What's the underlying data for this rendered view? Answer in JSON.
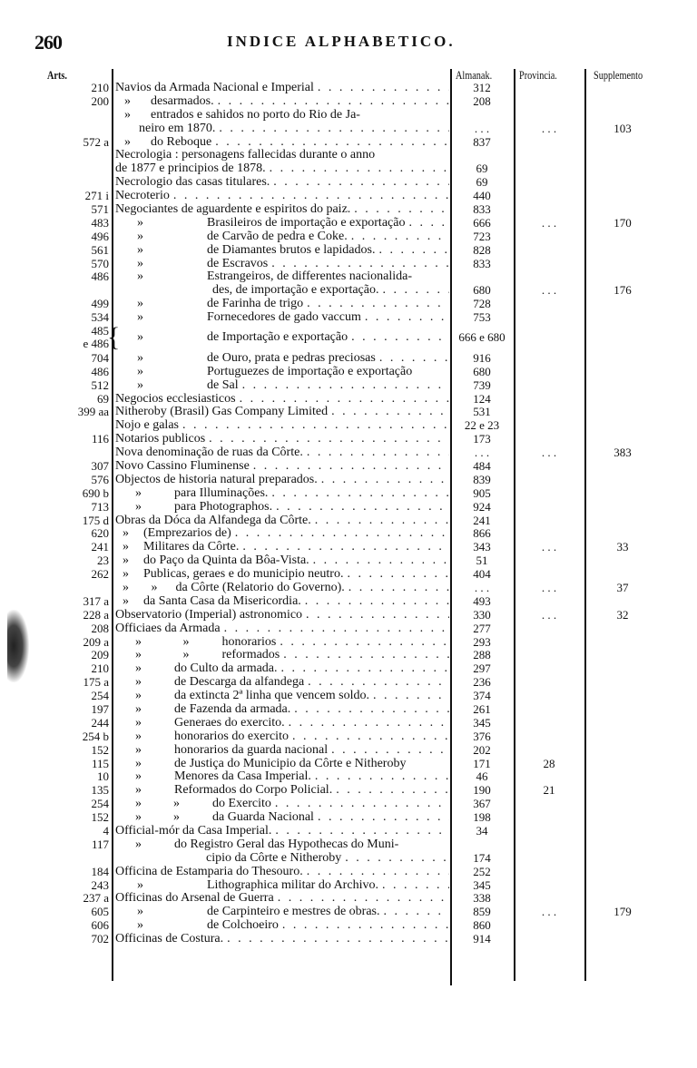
{
  "page_number": "260",
  "title": "INDICE ALPHABETICO.",
  "columns": {
    "arts": "Arts.",
    "almanak": "Almanak.",
    "provincia": "Provincia.",
    "supplemento": "Supplemento"
  },
  "rows": [
    {
      "art": "210",
      "level": 0,
      "text": "Navios da Armada Nacional e Imperial",
      "almanak": "312"
    },
    {
      "art": "200",
      "level": 1,
      "ditto": "»",
      "text": "desarmados.",
      "almanak": "208"
    },
    {
      "art": "",
      "level": 1,
      "ditto": "»",
      "text": "entrados e sahidos no porto do Rio de Ja-",
      "noleader": true
    },
    {
      "art": "",
      "level": 3,
      "text": "neiro em 1870.",
      "almanak": ". . .",
      "provincia": ". . .",
      "supplemento": "103"
    },
    {
      "art": "572 a",
      "level": 1,
      "ditto": "»",
      "text": "do Reboque",
      "almanak": "837"
    },
    {
      "art": "",
      "level": 0,
      "text": "Necrologia : personagens fallecidas durante o anno",
      "noleader": true
    },
    {
      "art": "",
      "level": 4,
      "text": "de 1877 e principios de 1878.",
      "almanak": "69"
    },
    {
      "art": "",
      "level": 0,
      "text": "Necrologio das casas titulares.",
      "almanak": "69"
    },
    {
      "art": "271 i",
      "level": 0,
      "text": "Necroterio",
      "almanak": "440"
    },
    {
      "art": "571",
      "level": 0,
      "text": "Negociantes de aguardente e espiritos do paiz.",
      "almanak": "833"
    },
    {
      "art": "483",
      "level": 2,
      "ditto": "»",
      "text": "Brasileiros de importação e exportação",
      "almanak": "666",
      "provincia": ". . .",
      "supplemento": "170"
    },
    {
      "art": "496",
      "level": 2,
      "ditto": "»",
      "text": "de Carvão de pedra e Coke.",
      "almanak": "723"
    },
    {
      "art": "561",
      "level": 2,
      "ditto": "»",
      "text": "de Diamantes brutos e lapidados.",
      "almanak": "828"
    },
    {
      "art": "570",
      "level": 2,
      "ditto": "»",
      "text": "de Escravos",
      "almanak": "833"
    },
    {
      "art": "486",
      "level": 2,
      "ditto": "»",
      "text": "Estrangeiros, de differentes nacionalida-",
      "noleader": true
    },
    {
      "art": "",
      "level": 5,
      "text": "des, de importação e exportação.",
      "almanak": "680",
      "provincia": ". . .",
      "supplemento": "176"
    },
    {
      "art": "499",
      "level": 2,
      "ditto": "»",
      "text": "de Farinha de trigo",
      "almanak": "728"
    },
    {
      "art": "534",
      "level": 2,
      "ditto": "»",
      "text": "Fornecedores de gado vaccum",
      "almanak": "753"
    },
    {
      "art": "485\ne 486",
      "level": 2,
      "ditto": "»",
      "text": "de Importação e exportação",
      "almanak": "666 e 680",
      "brace": "{"
    },
    {
      "art": "704",
      "level": 2,
      "ditto": "»",
      "text": "de Ouro, prata e pedras preciosas",
      "almanak": "916"
    },
    {
      "art": "486",
      "level": 2,
      "ditto": "»",
      "text": "Portuguezes de importação e exportação",
      "almanak": "680",
      "noleader": true
    },
    {
      "art": "512",
      "level": 2,
      "ditto": "»",
      "text": "de Sal",
      "almanak": "739"
    },
    {
      "art": "69",
      "level": 0,
      "text": "Negocios ecclesiasticos",
      "almanak": "124"
    },
    {
      "art": "399 aa",
      "level": 0,
      "text": "Nitheroby (Brasil) Gas Company Limited",
      "almanak": "531"
    },
    {
      "art": "",
      "level": 0,
      "text": "Nojo e galas",
      "almanak": "22 e 23"
    },
    {
      "art": "116",
      "level": 0,
      "text": "Notarios publicos",
      "almanak": "173"
    },
    {
      "art": "",
      "level": 0,
      "text": "Nova denominação de ruas da Côrte.",
      "almanak": ". . .",
      "provincia": ". . .",
      "supplemento": "383"
    },
    {
      "art": "307",
      "level": 0,
      "text": "Novo Cassino Fluminense",
      "almanak": "484"
    },
    {
      "art": "576",
      "level": 0,
      "text": "Objectos de historia natural preparados.",
      "almanak": "839"
    },
    {
      "art": "690 b",
      "level": 6,
      "ditto": "»",
      "text": "para Illuminações.",
      "almanak": "905"
    },
    {
      "art": "713",
      "level": 6,
      "ditto": "»",
      "text": "para Photographos.",
      "almanak": "924"
    },
    {
      "art": "175 d",
      "level": 0,
      "text": "Obras da Dóca da Alfandega da Côrte.",
      "almanak": "241"
    },
    {
      "art": "620",
      "level": 7,
      "ditto": "»",
      "text": "(Emprezarios de)",
      "almanak": "866"
    },
    {
      "art": "241",
      "level": 7,
      "ditto": "»",
      "text": "Militares da Côrte.",
      "almanak": "343",
      "provincia": ". . .",
      "supplemento": "33"
    },
    {
      "art": "23",
      "level": 7,
      "ditto": "»",
      "text": "do Paço da Quinta da Bôa-Vista.",
      "almanak": "51"
    },
    {
      "art": "262",
      "level": 7,
      "ditto": "»",
      "text": "Publicas, geraes e do municipio neutro.",
      "almanak": "404"
    },
    {
      "art": "",
      "level": 8,
      "ditto": "»       »",
      "text": "da Côrte (Relatorio do Governo).",
      "almanak": ". . .",
      "provincia": ". . .",
      "supplemento": "37"
    },
    {
      "art": "317 a",
      "level": 7,
      "ditto": "»",
      "text": "da Santa Casa da Misericordia.",
      "almanak": "493"
    },
    {
      "art": "228 a",
      "level": 0,
      "text": "Observatorio (Imperial) astronomico",
      "almanak": "330",
      "provincia": ". . .",
      "supplemento": "32"
    },
    {
      "art": "208",
      "level": 0,
      "text": "Officiaes da Armada",
      "almanak": "277"
    },
    {
      "art": "209 a",
      "level": 9,
      "ditto": "»             »",
      "text": "honorarios",
      "almanak": "293"
    },
    {
      "art": "209",
      "level": 9,
      "ditto": "»             »",
      "text": "reformados",
      "almanak": "288"
    },
    {
      "art": "210",
      "level": 6,
      "ditto": "»",
      "text": "do Culto da armada.",
      "almanak": "297"
    },
    {
      "art": "175 a",
      "level": 6,
      "ditto": "»",
      "text": "de Descarga da alfandega",
      "almanak": "236"
    },
    {
      "art": "254",
      "level": 6,
      "ditto": "»",
      "text": "da extincta 2ª linha que vencem soldo.",
      "almanak": "374"
    },
    {
      "art": "197",
      "level": 6,
      "ditto": "»",
      "text": "de Fazenda da armada.",
      "almanak": "261"
    },
    {
      "art": "244",
      "level": 6,
      "ditto": "»",
      "text": "Generaes do exercito.",
      "almanak": "345"
    },
    {
      "art": "254 b",
      "level": 6,
      "ditto": "»",
      "text": "honorarios do exercito",
      "almanak": "376"
    },
    {
      "art": "152",
      "level": 6,
      "ditto": "»",
      "text": "honorarios da guarda nacional",
      "almanak": "202"
    },
    {
      "art": "115",
      "level": 6,
      "ditto": "»",
      "text": "de Justiça do Municipio da Côrte e Nitheroby",
      "almanak": "171",
      "provincia": "28",
      "noleader": true
    },
    {
      "art": "10",
      "level": 6,
      "ditto": "»",
      "text": "Menores da Casa Imperial.",
      "almanak": "46"
    },
    {
      "art": "135",
      "level": 6,
      "ditto": "»",
      "text": "Reformados do Corpo Policial.",
      "almanak": "190",
      "provincia": "21"
    },
    {
      "art": "254",
      "level": 10,
      "ditto": "»          »",
      "text": "do Exercito",
      "almanak": "367"
    },
    {
      "art": "152",
      "level": 10,
      "ditto": "»          »",
      "text": "da Guarda Nacional",
      "almanak": "198"
    },
    {
      "art": "4",
      "level": 0,
      "text": "Official-mór da Casa Imperial.",
      "almanak": "34"
    },
    {
      "art": "117",
      "level": 6,
      "ditto": "»",
      "text": "do Registro Geral das Hypothecas do Muni-",
      "noleader": true
    },
    {
      "art": "",
      "level": 11,
      "text": "cipio da Côrte e Nitheroby",
      "almanak": "174"
    },
    {
      "art": "184",
      "level": 0,
      "text": "Officina de Estamparia do Thesouro.",
      "almanak": "252"
    },
    {
      "art": "243",
      "level": 2,
      "ditto": "»",
      "text": "Lithographica militar do Archivo.",
      "almanak": "345"
    },
    {
      "art": "237 a",
      "level": 0,
      "text": "Officinas do Arsenal de Guerra",
      "almanak": "338"
    },
    {
      "art": "605",
      "level": 2,
      "ditto": "»",
      "text": "de Carpinteiro e mestres de obras.",
      "almanak": "859",
      "provincia": ". . .",
      "supplemento": "179"
    },
    {
      "art": "606",
      "level": 2,
      "ditto": "»",
      "text": "de Colchoeiro",
      "almanak": "860"
    },
    {
      "art": "702",
      "level": 0,
      "text": "Officinas de Costura.",
      "almanak": "914"
    }
  ]
}
